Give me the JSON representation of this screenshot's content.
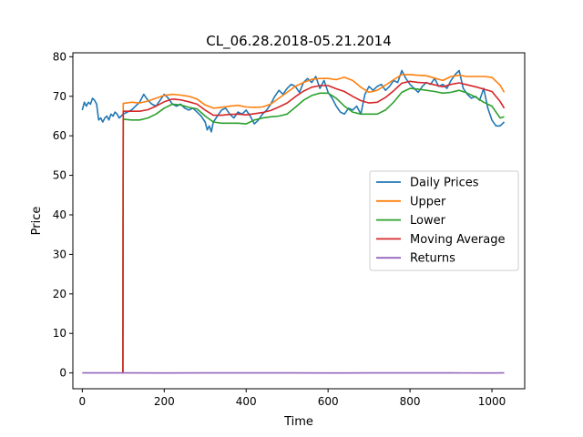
{
  "chart_data": {
    "type": "line",
    "title": "CL_06.28.2018-05.21.2014",
    "xlabel": "Time",
    "ylabel": "Price",
    "xlim": [
      -23,
      1080
    ],
    "ylim": [
      -4,
      81
    ],
    "xticks": [
      0,
      200,
      400,
      600,
      800,
      1000
    ],
    "yticks": [
      0,
      10,
      20,
      30,
      40,
      50,
      60,
      70,
      80
    ],
    "grid": false,
    "legend_position": "center-right",
    "series": [
      {
        "name": "Daily Prices",
        "color": "#1f77b4",
        "x": [
          0,
          5,
          10,
          15,
          20,
          25,
          30,
          35,
          40,
          45,
          50,
          55,
          60,
          65,
          70,
          75,
          80,
          85,
          90,
          95,
          100,
          110,
          120,
          130,
          140,
          150,
          160,
          170,
          180,
          190,
          200,
          210,
          220,
          230,
          240,
          250,
          260,
          270,
          280,
          290,
          300,
          305,
          310,
          315,
          320,
          330,
          340,
          350,
          360,
          370,
          380,
          390,
          400,
          410,
          420,
          430,
          440,
          450,
          460,
          470,
          480,
          490,
          500,
          510,
          520,
          530,
          540,
          550,
          560,
          570,
          580,
          590,
          600,
          610,
          620,
          630,
          640,
          650,
          660,
          670,
          680,
          690,
          700,
          710,
          720,
          730,
          740,
          750,
          760,
          770,
          780,
          790,
          800,
          810,
          820,
          830,
          840,
          850,
          860,
          870,
          880,
          890,
          900,
          910,
          920,
          930,
          940,
          950,
          960,
          970,
          980,
          990,
          1000,
          1010,
          1020,
          1030
        ],
        "values": [
          66.5,
          68.5,
          67.5,
          68.5,
          68.0,
          69.5,
          69.0,
          68.0,
          64.0,
          64.5,
          63.5,
          64.5,
          65.0,
          64.0,
          65.5,
          65.0,
          66.0,
          65.5,
          64.5,
          65.0,
          65.5,
          66.0,
          66.5,
          67.5,
          68.5,
          70.5,
          69.0,
          68.0,
          67.5,
          69.0,
          70.5,
          69.5,
          68.0,
          67.5,
          68.0,
          67.0,
          66.5,
          67.0,
          66.0,
          65.0,
          63.5,
          61.5,
          62.5,
          61.0,
          63.5,
          65.0,
          66.5,
          67.0,
          65.5,
          64.5,
          66.0,
          65.5,
          66.5,
          65.0,
          63.0,
          64.0,
          65.5,
          66.5,
          68.0,
          70.0,
          71.5,
          70.5,
          72.0,
          73.0,
          72.5,
          71.0,
          73.5,
          74.5,
          73.5,
          75.0,
          72.0,
          74.0,
          71.0,
          69.5,
          67.5,
          66.0,
          65.5,
          67.0,
          66.5,
          67.5,
          65.5,
          70.5,
          72.5,
          71.5,
          72.5,
          73.0,
          71.5,
          72.5,
          74.0,
          73.5,
          76.5,
          74.5,
          73.0,
          72.0,
          71.0,
          72.5,
          73.5,
          73.0,
          74.5,
          72.5,
          73.0,
          72.0,
          74.0,
          75.5,
          76.5,
          72.0,
          70.5,
          69.5,
          70.0,
          69.0,
          72.0,
          67.0,
          64.0,
          62.5,
          62.5,
          63.5
        ]
      },
      {
        "name": "Upper",
        "color": "#ff7f0e",
        "x": [
          99,
          100,
          120,
          140,
          160,
          180,
          200,
          220,
          240,
          260,
          280,
          300,
          320,
          340,
          360,
          380,
          400,
          420,
          440,
          460,
          480,
          500,
          520,
          540,
          560,
          580,
          600,
          620,
          640,
          660,
          680,
          700,
          720,
          740,
          760,
          780,
          800,
          820,
          840,
          860,
          880,
          900,
          920,
          940,
          960,
          980,
          1000,
          1020,
          1030
        ],
        "values": [
          0,
          68.2,
          68.5,
          68.3,
          68.8,
          69.5,
          70.2,
          70.5,
          70.3,
          70.0,
          69.3,
          67.8,
          67.0,
          67.2,
          67.5,
          67.7,
          67.3,
          67.2,
          67.3,
          68.0,
          69.5,
          71.0,
          72.5,
          73.5,
          74.3,
          74.5,
          74.5,
          74.2,
          74.8,
          74.0,
          72.3,
          71.0,
          71.5,
          72.8,
          74.2,
          75.5,
          75.5,
          75.3,
          75.2,
          74.6,
          74.0,
          75.0,
          75.3,
          75.0,
          75.0,
          75.0,
          74.8,
          72.8,
          71.0
        ]
      },
      {
        "name": "Lower",
        "color": "#2ca02c",
        "x": [
          99,
          100,
          120,
          140,
          160,
          180,
          200,
          220,
          240,
          260,
          280,
          300,
          320,
          340,
          360,
          380,
          400,
          420,
          440,
          460,
          480,
          500,
          520,
          540,
          560,
          580,
          600,
          620,
          640,
          660,
          680,
          700,
          720,
          740,
          760,
          780,
          800,
          820,
          840,
          860,
          880,
          900,
          920,
          940,
          960,
          980,
          1000,
          1020,
          1030
        ],
        "values": [
          0,
          64.2,
          64.0,
          64.0,
          64.5,
          65.5,
          67.0,
          68.0,
          67.8,
          67.2,
          66.8,
          65.0,
          63.5,
          63.2,
          63.2,
          63.2,
          63.0,
          64.0,
          64.5,
          64.8,
          65.0,
          65.5,
          67.2,
          69.0,
          70.2,
          70.8,
          70.8,
          69.5,
          67.5,
          66.0,
          65.5,
          65.5,
          65.5,
          66.5,
          68.5,
          71.0,
          72.0,
          71.8,
          71.5,
          71.2,
          70.8,
          71.0,
          71.5,
          70.8,
          69.8,
          68.5,
          67.5,
          64.5,
          64.8
        ]
      },
      {
        "name": "Moving Average",
        "color": "#d62728",
        "x": [
          98,
          99,
          100,
          120,
          140,
          160,
          180,
          200,
          220,
          240,
          260,
          280,
          300,
          320,
          340,
          360,
          380,
          400,
          420,
          440,
          460,
          480,
          500,
          520,
          540,
          560,
          580,
          600,
          620,
          640,
          660,
          680,
          700,
          720,
          740,
          760,
          780,
          800,
          820,
          840,
          860,
          880,
          900,
          920,
          940,
          960,
          980,
          1000,
          1020,
          1030
        ],
        "values": [
          0,
          0,
          66.2,
          66.2,
          66.2,
          66.6,
          67.5,
          68.6,
          69.3,
          69.1,
          68.6,
          68.0,
          66.5,
          65.2,
          65.2,
          65.4,
          65.5,
          65.3,
          65.6,
          65.9,
          66.4,
          67.3,
          68.3,
          69.9,
          71.3,
          72.3,
          72.7,
          72.7,
          71.9,
          71.2,
          70.0,
          68.9,
          68.3,
          68.5,
          69.7,
          71.4,
          73.3,
          73.8,
          73.5,
          73.4,
          72.9,
          72.4,
          73.0,
          73.4,
          72.9,
          72.4,
          71.8,
          71.2,
          68.7,
          67.0
        ]
      },
      {
        "name": "Returns",
        "color": "#9467bd",
        "x": [
          0,
          100,
          200,
          300,
          400,
          500,
          600,
          700,
          800,
          900,
          1000,
          1030
        ],
        "values": [
          0.0,
          0.01,
          -0.01,
          0.0,
          0.01,
          0.0,
          -0.01,
          0.0,
          0.01,
          0.0,
          -0.01,
          0.0
        ]
      }
    ]
  }
}
